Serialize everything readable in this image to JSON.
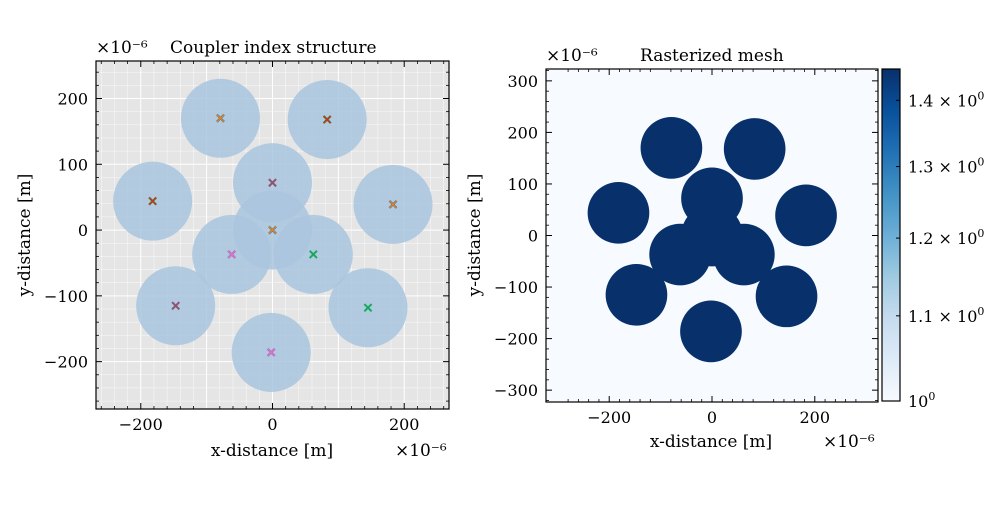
{
  "chart_data": [
    {
      "type": "scatter",
      "title": "Coupler index structure",
      "xlabel": "x-distance [m]",
      "ylabel": "y-distance [m]",
      "x_scale_label": "×10⁻⁶",
      "y_scale_label": "×10⁻⁶",
      "xlim": [
        -268,
        268
      ],
      "ylim": [
        -272,
        257
      ],
      "xticks": [
        -200,
        0,
        200
      ],
      "yticks": [
        -200,
        -100,
        0,
        100,
        200
      ],
      "xtick_labels": [
        "−200",
        "0",
        "200"
      ],
      "ytick_labels": [
        "−200",
        "−100",
        "0",
        "100",
        "200"
      ],
      "grid": true,
      "background": "#e5e5e5",
      "circle_color": "#a9c6de",
      "circle_radius": 60,
      "cores": [
        {
          "x": -79,
          "y": 170,
          "marker_colors": [
            "#1f77b4",
            "#ff7f0e"
          ]
        },
        {
          "x": 83,
          "y": 168,
          "marker_colors": [
            "#2ca02c",
            "#d62728"
          ]
        },
        {
          "x": 0,
          "y": 72,
          "marker_colors": [
            "#9467bd",
            "#8c564b"
          ]
        },
        {
          "x": -182,
          "y": 44,
          "marker_colors": [
            "#2ca02c",
            "#d62728"
          ]
        },
        {
          "x": 183,
          "y": 39,
          "marker_colors": [
            "#1f77b4",
            "#ff7f0e"
          ]
        },
        {
          "x": 0,
          "y": 0,
          "marker_colors": [
            "#1f77b4",
            "#ff7f0e"
          ]
        },
        {
          "x": -62,
          "y": -37,
          "marker_colors": [
            "#9467bd",
            "#e377c2"
          ]
        },
        {
          "x": 62,
          "y": -37,
          "marker_colors": [
            "#17becf",
            "#2ca02c"
          ]
        },
        {
          "x": -147,
          "y": -115,
          "marker_colors": [
            "#9467bd",
            "#8c564b"
          ]
        },
        {
          "x": 145,
          "y": -118,
          "marker_colors": [
            "#17becf",
            "#2ca02c"
          ]
        },
        {
          "x": -2,
          "y": -186,
          "marker_colors": [
            "#9467bd",
            "#e377c2"
          ]
        }
      ]
    },
    {
      "type": "heatmap",
      "title": "Rasterized mesh",
      "xlabel": "x-distance [m]",
      "ylabel": "y-distance [m]",
      "x_scale_label": "×10⁻⁶",
      "y_scale_label": "×10⁻⁶",
      "xlim": [
        -323,
        323
      ],
      "ylim": [
        -323,
        323
      ],
      "xticks": [
        -200,
        0,
        200
      ],
      "yticks": [
        -300,
        -200,
        -100,
        0,
        100,
        200,
        300
      ],
      "xtick_labels": [
        "−200",
        "0",
        "200"
      ],
      "ytick_labels": [
        "−300",
        "−200",
        "−100",
        "0",
        "100",
        "200",
        "300"
      ],
      "background_color": "#f7fbff",
      "core_color": "#08306b",
      "colorbar": {
        "scale": "log",
        "min": 1.0,
        "max": 1.45,
        "ticks": [
          1.0,
          1.1,
          1.2,
          1.3,
          1.4
        ],
        "tick_labels": [
          {
            "base": "10",
            "exp": "0"
          },
          {
            "base": "1.1 × 10",
            "exp": "0"
          },
          {
            "base": "1.2 × 10",
            "exp": "0"
          },
          {
            "base": "1.3 × 10",
            "exp": "0"
          },
          {
            "base": "1.4 × 10",
            "exp": "0"
          }
        ],
        "colors": [
          "#f7fbff",
          "#deebf7",
          "#c6dbef",
          "#9ecae1",
          "#6baed6",
          "#4292c6",
          "#2171b5",
          "#08519c",
          "#08306b"
        ]
      }
    }
  ]
}
